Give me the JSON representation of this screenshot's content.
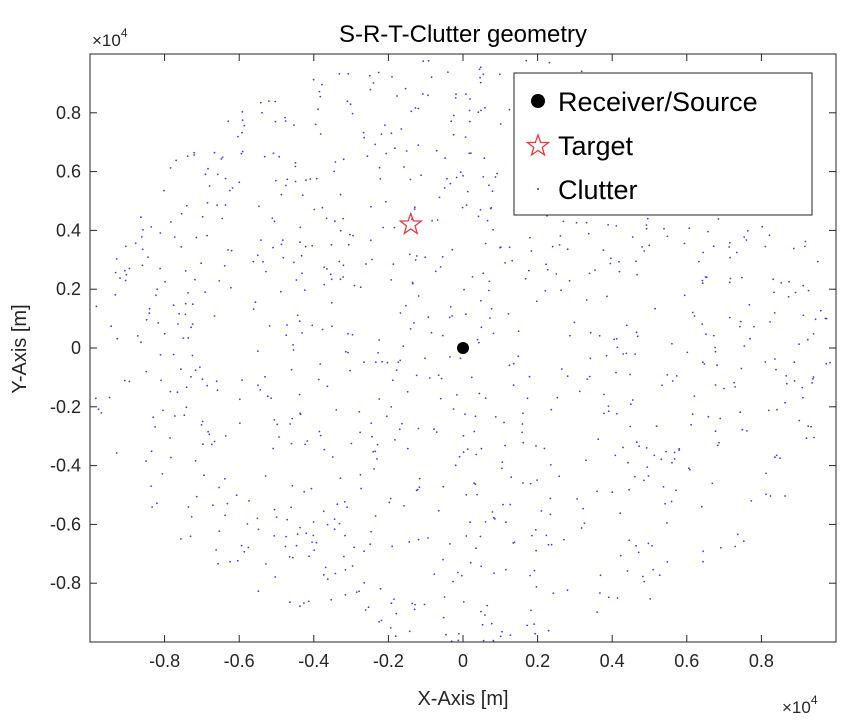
{
  "chart_data": {
    "type": "scatter",
    "title": "S-R-T-Clutter geometry",
    "xlabel": "X-Axis [m]",
    "ylabel": "Y-Axis [m]",
    "x_exponent_label": "×10",
    "x_exponent_power": "4",
    "y_exponent_label": "×10",
    "y_exponent_power": "4",
    "xlim": [
      -10000,
      10000
    ],
    "ylim": [
      -10000,
      10000
    ],
    "x_ticks": [
      -8000,
      -6000,
      -4000,
      -2000,
      0,
      2000,
      4000,
      6000,
      8000
    ],
    "y_ticks": [
      -8000,
      -6000,
      -4000,
      -2000,
      0,
      2000,
      4000,
      6000,
      8000
    ],
    "x_tick_labels": [
      "-0.8",
      "-0.6",
      "-0.4",
      "-0.2",
      "0",
      "0.2",
      "0.4",
      "0.6",
      "0.8"
    ],
    "y_tick_labels": [
      "-0.8",
      "-0.6",
      "-0.4",
      "-0.2",
      "0",
      "0.2",
      "0.4",
      "0.6",
      "0.8"
    ],
    "grid": false,
    "legend_position": "top-right",
    "series": [
      {
        "name": "Receiver/Source",
        "marker": "filled-circle",
        "color": "#000000",
        "points": [
          [
            0,
            0
          ]
        ]
      },
      {
        "name": "Target",
        "marker": "star",
        "color": "#e8383d",
        "points": [
          [
            -1400,
            4200
          ]
        ]
      },
      {
        "name": "Clutter",
        "marker": "point",
        "color": "#3f3fd8",
        "count": 1000,
        "distribution": "uniform-disk",
        "max_radius": 10000
      }
    ]
  }
}
